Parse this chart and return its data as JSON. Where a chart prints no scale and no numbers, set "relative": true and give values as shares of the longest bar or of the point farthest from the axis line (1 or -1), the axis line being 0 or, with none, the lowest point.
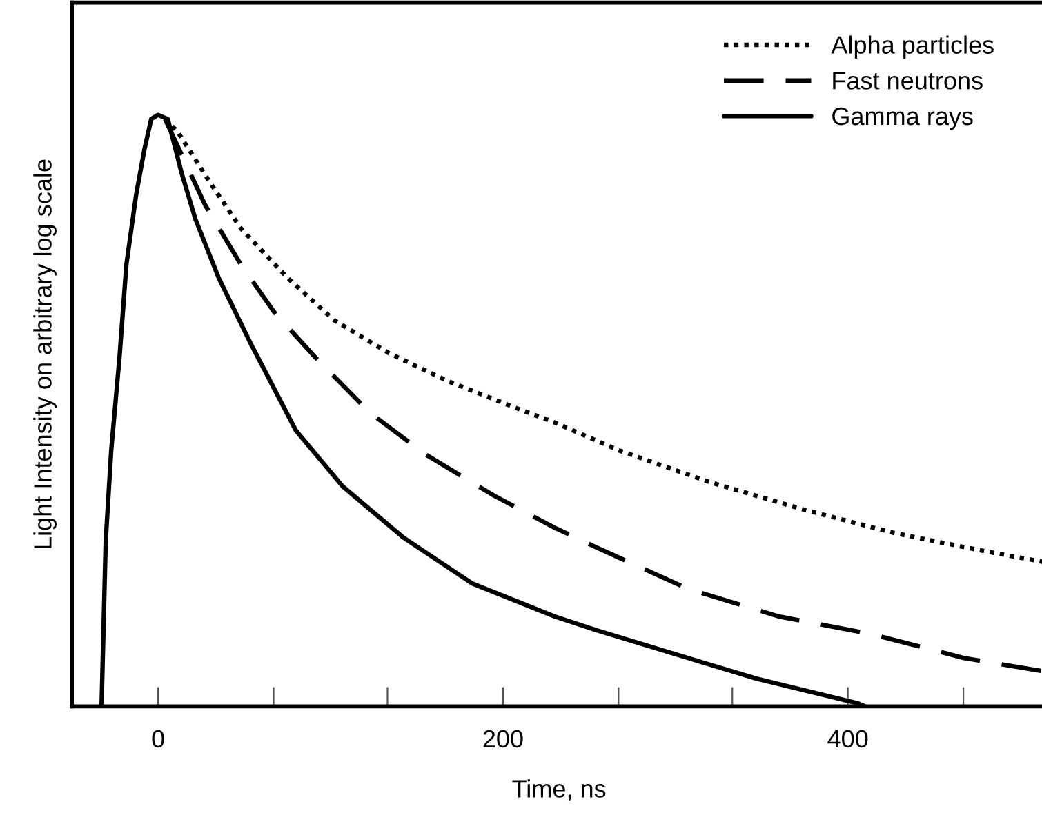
{
  "chart_data": {
    "type": "line",
    "relative": true,
    "xlabel": "Time, ns",
    "ylabel": "Light Intensity on arbitrary log scale",
    "xlim": [
      -50,
      515
    ],
    "xticks": [
      0,
      {
        "value": 67,
        "label": null
      },
      {
        "value": 133,
        "label": null
      },
      200,
      {
        "value": 267,
        "label": null
      },
      {
        "value": 333,
        "label": null
      },
      400,
      {
        "value": 467,
        "label": null
      }
    ],
    "legend": "top right",
    "grid": false,
    "marker": "none",
    "series": [
      {
        "name": "Alpha particles",
        "color": "#000000",
        "line_style": "dotted",
        "x": [
          4,
          11.2,
          29.6,
          48,
          75.2,
          102,
          134,
          168,
          208,
          230,
          267,
          320,
          374,
          427,
          480,
          514
        ],
        "values": [
          0.993,
          0.972,
          0.888,
          0.808,
          0.724,
          0.653,
          0.597,
          0.55,
          0.504,
          0.48,
          0.433,
          0.379,
          0.333,
          0.293,
          0.262,
          0.244
        ]
      },
      {
        "name": "Fast neutrons",
        "color": "#000000",
        "line_style": "dashed",
        "x": [
          4,
          27.2,
          48,
          67.2,
          91.2,
          123,
          155,
          195,
          230,
          254,
          307,
          360,
          414,
          467,
          514
        ],
        "values": [
          0.993,
          0.848,
          0.747,
          0.667,
          0.59,
          0.496,
          0.426,
          0.356,
          0.302,
          0.269,
          0.199,
          0.152,
          0.122,
          0.082,
          0.059
        ]
      },
      {
        "name": "Gamma rays",
        "color": "#000000",
        "line_style": "solid",
        "x": [
          -32.8,
          -30.4,
          -27.2,
          -22.4,
          -18.4,
          -12.8,
          -8,
          -4,
          0,
          5.6,
          13.6,
          21.6,
          35.2,
          53.6,
          80,
          107,
          142,
          182,
          230,
          254,
          307,
          347,
          406,
          410
        ],
        "values": [
          0,
          0.279,
          0.433,
          0.59,
          0.747,
          0.864,
          0.941,
          0.993,
          1,
          0.993,
          0.902,
          0.824,
          0.724,
          0.614,
          0.466,
          0.372,
          0.286,
          0.208,
          0.152,
          0.129,
          0.082,
          0.047,
          0.005,
          0
        ]
      }
    ]
  }
}
